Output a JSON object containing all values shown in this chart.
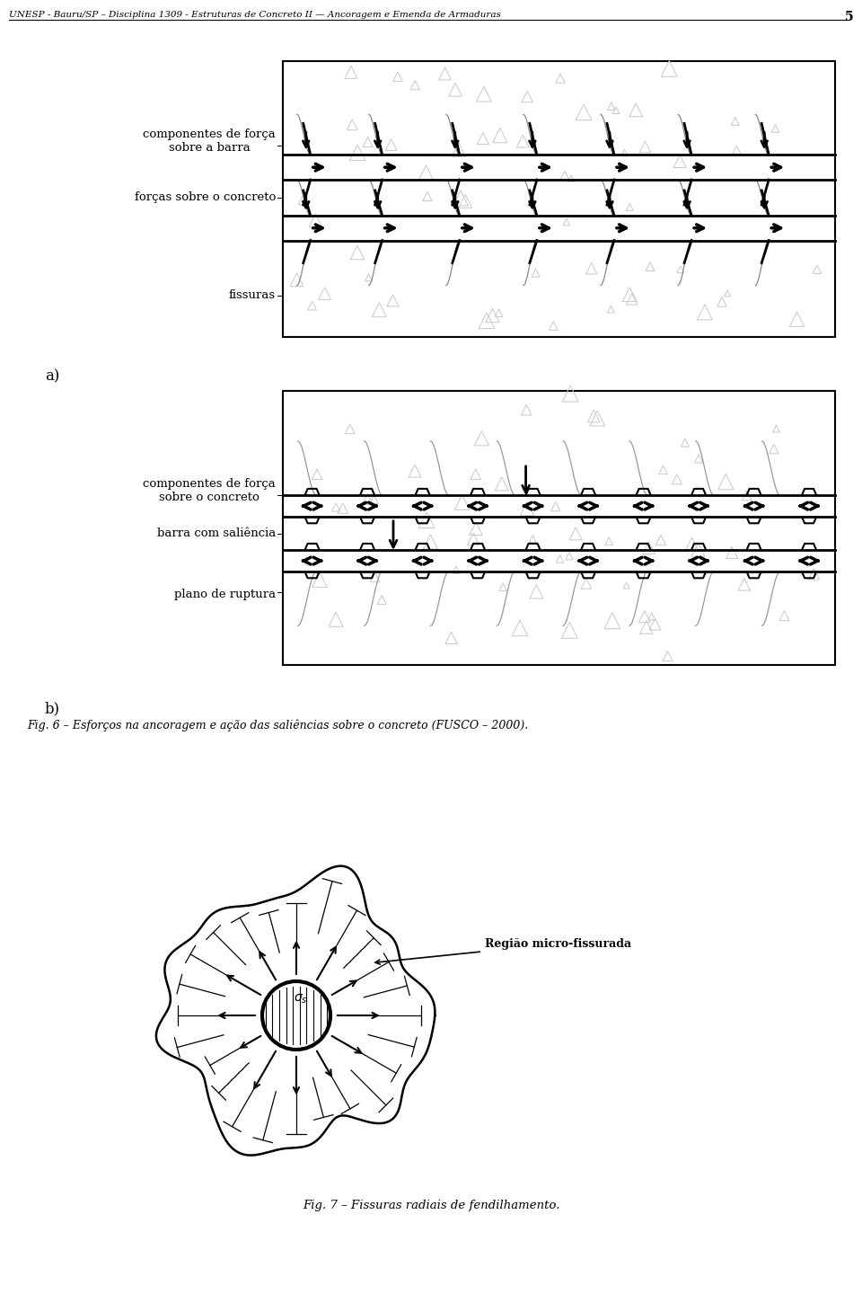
{
  "header_text": "UNESP - Bauru/SP – Disciplina 1309 - Estruturas de Concreto II — Ancoragem e Emenda de Armaduras",
  "page_number": "5",
  "fig_a_labels": {
    "label1": "componentes de força\nsobre a barra",
    "label2": "forças sobre o concreto",
    "label3": "fissuras"
  },
  "fig_b_labels": {
    "label1": "componentes de força\nsobre o concreto",
    "label2": "barra com saliência",
    "label3": "plano de ruptura"
  },
  "label_a": "a)",
  "label_b": "b)",
  "fig6_caption": "Fig. 6 – Esforços na ancoragem e ação das saliências sobre o concreto (FUSCO – 2000).",
  "fig7_label": "Região micro-fissurada",
  "sigma_label": "σs",
  "fig7_caption": "Fig. 7 – Fissuras radiais de fendilhamento.",
  "bg_color": "#ffffff"
}
